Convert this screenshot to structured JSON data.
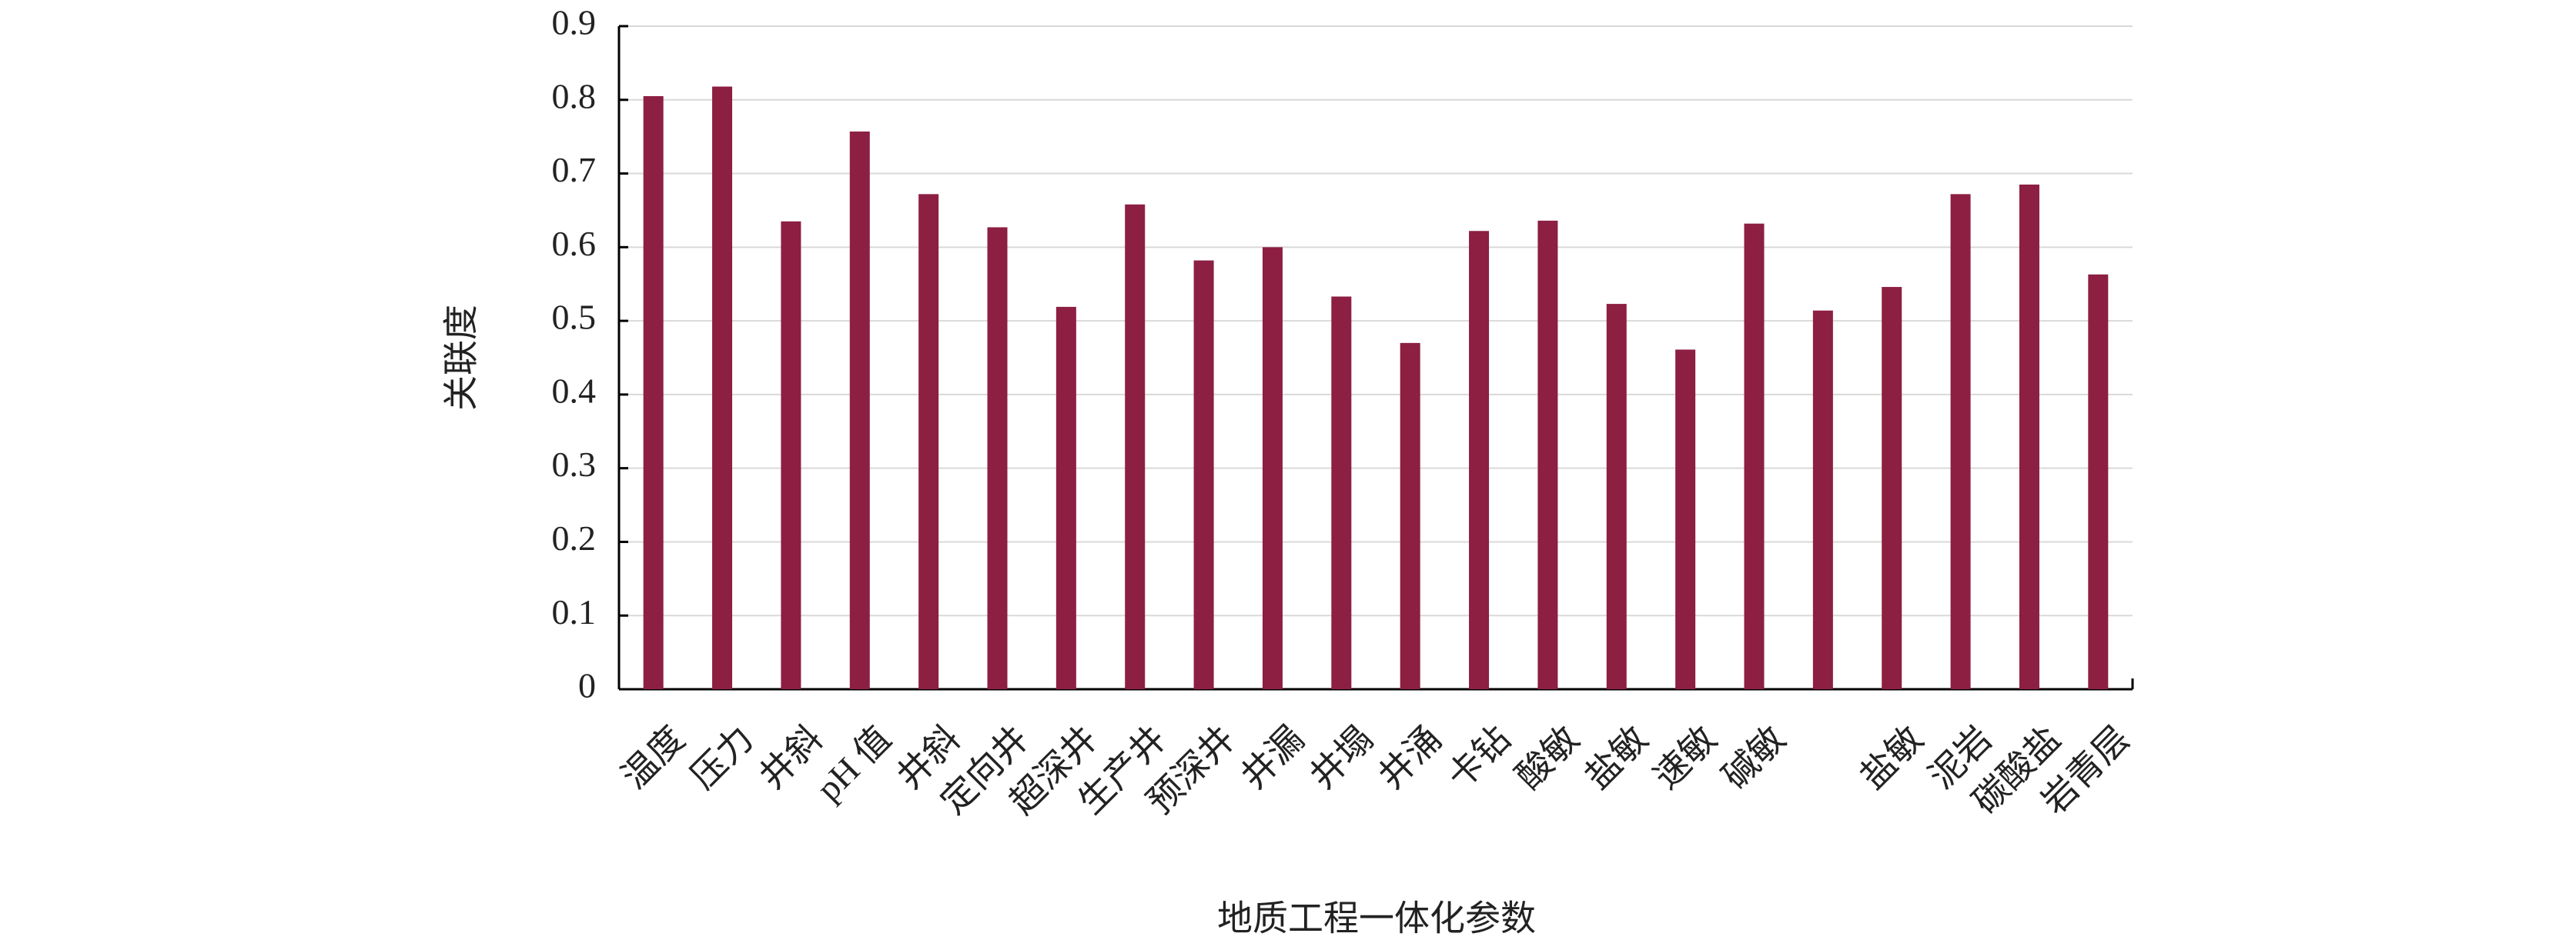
{
  "chart_data": {
    "type": "bar",
    "y_label": "关联度",
    "x_label": "地质工程一体化参数",
    "categories": [
      "温度",
      "压力",
      "井斜",
      "pH 值",
      "井斜",
      "定向井",
      "超深井",
      "生产井",
      "预深井",
      "井漏",
      "井塌",
      "井涌",
      "卡钻",
      "酸敏",
      "盐敏",
      "速敏",
      "碱敏",
      null,
      "盐敏",
      "泥岩",
      "碳酸盐",
      "岩青层"
    ],
    "values": [
      0.805,
      0.818,
      0.635,
      0.757,
      0.672,
      0.627,
      0.519,
      0.658,
      0.582,
      0.6,
      0.533,
      0.47,
      0.622,
      0.636,
      0.523,
      0.461,
      0.632,
      0.514,
      0.546,
      0.672,
      0.685,
      0.563
    ],
    "color": "#8c1f42",
    "ylim": [
      0,
      0.9
    ],
    "yticks": [
      0,
      0.1,
      0.2,
      0.3,
      0.4,
      0.5,
      0.6,
      0.7,
      0.8,
      0.9
    ],
    "grid": true
  }
}
